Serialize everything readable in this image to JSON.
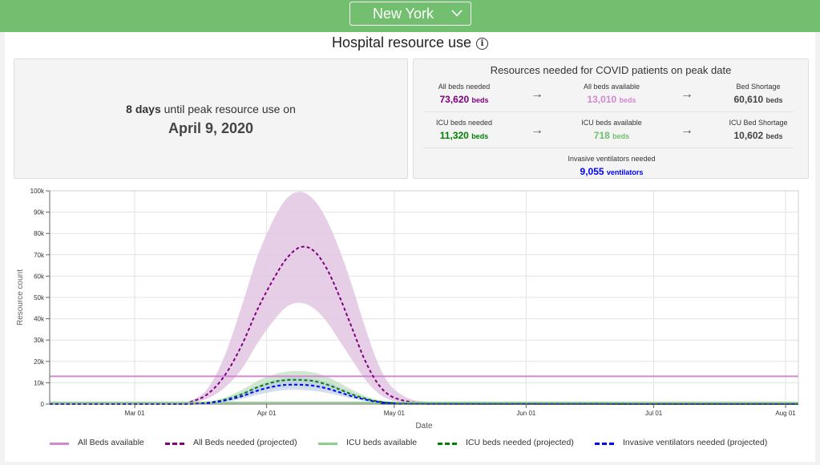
{
  "header": {
    "state": "New York"
  },
  "title": "Hospital resource use",
  "peak": {
    "days_value": "8",
    "days_word": "days",
    "text": "until peak resource use on",
    "date": "April 9, 2020"
  },
  "resources": {
    "title": "Resources needed for COVID patients on peak date",
    "rows": [
      {
        "needed_label": "All beds needed",
        "needed_value": "73,620",
        "available_label": "All beds available",
        "available_value": "13,010",
        "shortage_label": "Bed Shortage",
        "shortage_value": "60,610",
        "unit": "beds"
      },
      {
        "needed_label": "ICU beds needed",
        "needed_value": "11,320",
        "available_label": "ICU beds available",
        "available_value": "718",
        "shortage_label": "ICU Bed Shortage",
        "shortage_value": "10,602",
        "unit": "beds"
      }
    ],
    "ventilators": {
      "label": "Invasive ventilators needed",
      "value": "9,055",
      "unit": "ventilators"
    }
  },
  "colors": {
    "all_beds": "#800080",
    "all_beds_band": "#e2c7e2",
    "all_beds_available": "#d088d0",
    "icu": "#008000",
    "icu_available": "#8ccf8c",
    "ventilators": "#0000ff"
  },
  "chart_data": {
    "type": "line",
    "x_is_date": true,
    "x_range": [
      "2020-02-10",
      "2020-08-04"
    ],
    "xlabel": "Date",
    "ylabel": "Resource count",
    "ylim": [
      0,
      100000
    ],
    "y_ticks": [
      0,
      10000,
      20000,
      30000,
      40000,
      50000,
      60000,
      70000,
      80000,
      90000,
      100000
    ],
    "y_tick_labels": [
      "0",
      "10k",
      "20k",
      "30k",
      "40k",
      "50k",
      "60k",
      "70k",
      "80k",
      "90k",
      "100k"
    ],
    "x_ticks": [
      "2020-03-01",
      "2020-04-01",
      "2020-05-01",
      "2020-06-01",
      "2020-07-01",
      "2020-08-01"
    ],
    "x_tick_labels": [
      "Mar 01",
      "Apr 01",
      "May 01",
      "Jun 01",
      "Jul 01",
      "Aug 01"
    ],
    "grid": true,
    "legend_position": "bottom",
    "series": [
      {
        "name": "All Beds available",
        "style": "solid",
        "color": "#d088d0",
        "x": [
          "2020-02-10",
          "2020-08-04"
        ],
        "values": [
          13010,
          13010
        ]
      },
      {
        "name": "All Beds needed (projected)",
        "style": "dashed",
        "color": "#800080",
        "x": [
          "2020-02-10",
          "2020-03-05",
          "2020-03-10",
          "2020-03-14",
          "2020-03-18",
          "2020-03-22",
          "2020-03-26",
          "2020-03-30",
          "2020-04-03",
          "2020-04-06",
          "2020-04-09",
          "2020-04-12",
          "2020-04-15",
          "2020-04-18",
          "2020-04-21",
          "2020-04-24",
          "2020-04-27",
          "2020-04-30",
          "2020-05-04",
          "2020-05-08",
          "2020-05-12",
          "2020-05-16",
          "2020-08-04"
        ],
        "values": [
          0,
          0,
          200,
          1000,
          4500,
          13000,
          27000,
          45000,
          60000,
          69000,
          73620,
          72000,
          64000,
          51000,
          36000,
          21000,
          10000,
          4000,
          1300,
          500,
          200,
          100,
          0
        ],
        "band_upper": [
          0,
          0,
          300,
          1500,
          7000,
          22000,
          45000,
          70000,
          88000,
          97000,
          99500,
          96000,
          87000,
          73000,
          56000,
          37000,
          20000,
          9000,
          3000,
          1200,
          500,
          200,
          0
        ],
        "band_lower": [
          0,
          0,
          100,
          600,
          2500,
          7500,
          16000,
          29000,
          40000,
          46000,
          47500,
          45000,
          39000,
          30000,
          21000,
          12000,
          5500,
          2000,
          500,
          200,
          100,
          50,
          0
        ]
      },
      {
        "name": "ICU beds available",
        "style": "solid",
        "color": "#8ccf8c",
        "x": [
          "2020-02-10",
          "2020-08-04"
        ],
        "values": [
          718,
          718
        ]
      },
      {
        "name": "ICU beds needed (projected)",
        "style": "dashed",
        "color": "#008000",
        "x": [
          "2020-02-10",
          "2020-03-08",
          "2020-03-14",
          "2020-03-18",
          "2020-03-22",
          "2020-03-26",
          "2020-03-30",
          "2020-04-03",
          "2020-04-06",
          "2020-04-09",
          "2020-04-12",
          "2020-04-15",
          "2020-04-18",
          "2020-04-21",
          "2020-04-24",
          "2020-04-27",
          "2020-05-01",
          "2020-05-06",
          "2020-08-04"
        ],
        "values": [
          0,
          0,
          100,
          600,
          2000,
          4500,
          8000,
          10500,
          11300,
          11320,
          10800,
          9300,
          7000,
          4600,
          2700,
          1300,
          400,
          100,
          0
        ],
        "band_upper": [
          0,
          0,
          200,
          1000,
          3000,
          6500,
          11000,
          14000,
          15300,
          15500,
          14800,
          13000,
          10000,
          6800,
          4000,
          2000,
          700,
          200,
          0
        ],
        "band_lower": [
          0,
          0,
          50,
          300,
          1200,
          3000,
          5500,
          7500,
          8200,
          8200,
          7800,
          6700,
          5000,
          3200,
          1800,
          800,
          250,
          50,
          0
        ]
      },
      {
        "name": "Invasive ventilators needed (projected)",
        "style": "dashed",
        "color": "#0000ff",
        "x": [
          "2020-02-10",
          "2020-03-08",
          "2020-03-14",
          "2020-03-18",
          "2020-03-22",
          "2020-03-26",
          "2020-03-30",
          "2020-04-03",
          "2020-04-06",
          "2020-04-09",
          "2020-04-12",
          "2020-04-15",
          "2020-04-18",
          "2020-04-21",
          "2020-04-24",
          "2020-04-27",
          "2020-05-01",
          "2020-05-06",
          "2020-08-04"
        ],
        "values": [
          0,
          0,
          80,
          450,
          1600,
          3600,
          6400,
          8400,
          9050,
          9055,
          8600,
          7400,
          5600,
          3700,
          2200,
          1050,
          350,
          80,
          0
        ],
        "band_upper": [
          0,
          0,
          160,
          800,
          2500,
          5200,
          8800,
          11300,
          12300,
          12400,
          11800,
          10400,
          8000,
          5400,
          3200,
          1600,
          550,
          150,
          0
        ],
        "band_lower": [
          0,
          0,
          40,
          250,
          1000,
          2400,
          4400,
          6000,
          6600,
          6600,
          6200,
          5300,
          4000,
          2600,
          1500,
          650,
          200,
          40,
          0
        ]
      }
    ]
  }
}
